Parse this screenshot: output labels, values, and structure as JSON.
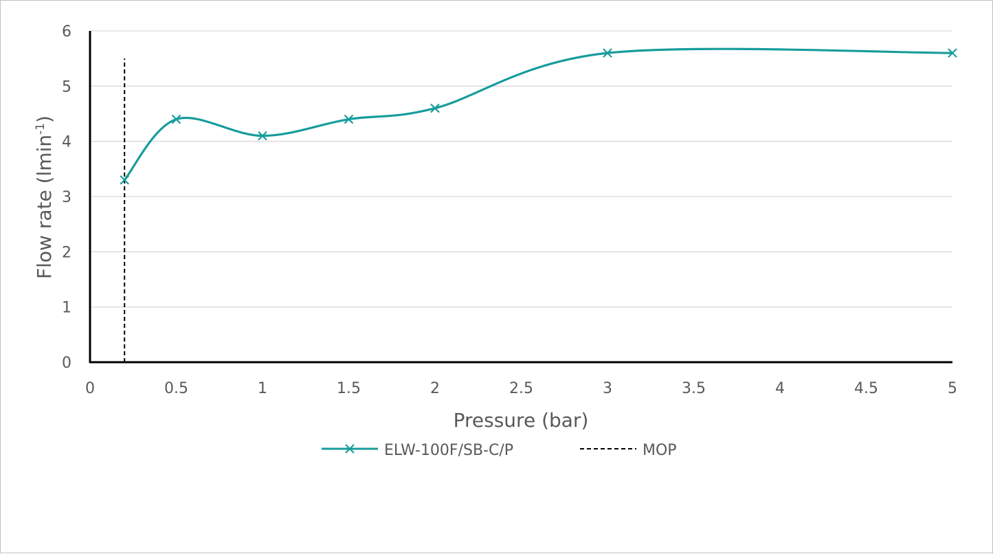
{
  "chart_data": {
    "type": "line",
    "title": "",
    "xlabel": "Pressure (bar)",
    "ylabel_main": "Flow rate (lmin",
    "ylabel_sup": "-1",
    "ylabel_close": ")",
    "xlim": [
      0,
      5
    ],
    "ylim": [
      0,
      6
    ],
    "x_ticks": [
      0,
      0.5,
      1,
      1.5,
      2,
      2.5,
      3,
      3.5,
      4,
      4.5,
      5
    ],
    "x_tick_labels": [
      "0",
      "0.5",
      "1",
      "1.5",
      "2",
      "2.5",
      "3",
      "3.5",
      "4",
      "4.5",
      "5"
    ],
    "y_ticks": [
      0,
      1,
      2,
      3,
      4,
      5,
      6
    ],
    "y_tick_labels": [
      "0",
      "1",
      "2",
      "3",
      "4",
      "5",
      "6"
    ],
    "grid": "horizontal",
    "legend_position": "bottom",
    "series": [
      {
        "name": "ELW-100F/SB-C/P",
        "color": "#179c9c",
        "marker": "x",
        "smooth": true,
        "x": [
          0.2,
          0.5,
          1,
          1.5,
          2,
          3,
          5
        ],
        "y": [
          3.3,
          4.4,
          4.1,
          4.4,
          4.6,
          5.6,
          5.6
        ]
      },
      {
        "name": "MOP",
        "color": "#000000",
        "style": "dashed",
        "x": [
          0.2,
          0.2
        ],
        "y": [
          0,
          5.5
        ]
      }
    ]
  }
}
